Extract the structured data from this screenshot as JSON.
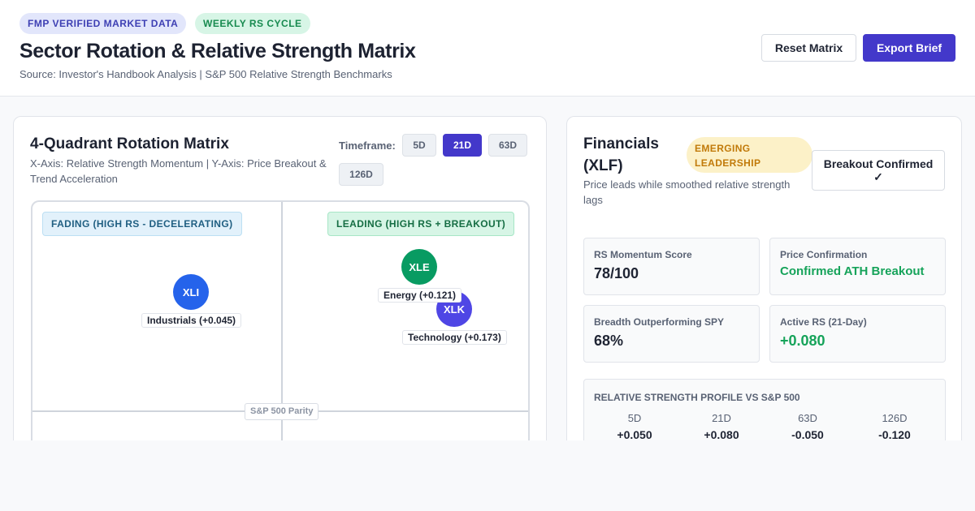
{
  "header": {
    "badges": [
      "FMP VERIFIED MARKET DATA",
      "WEEKLY RS CYCLE"
    ],
    "title": "Sector Rotation & Relative Strength Matrix",
    "source": "Source: Investor's Handbook Analysis | S&P 500 Relative Strength Benchmarks",
    "reset_label": "Reset Matrix",
    "export_label": "Export Brief"
  },
  "matrix": {
    "title": "4-Quadrant Rotation Matrix",
    "subtitle": "X-Axis: Relative Strength Momentum | Y-Axis: Price Breakout & Trend Acceleration",
    "timeframe_label": "Timeframe:",
    "timeframes": [
      "5D",
      "21D",
      "63D",
      "126D"
    ],
    "selected_timeframe": "21D",
    "quadrants": {
      "fading": "FADING (HIGH RS - DECELERATING)",
      "leading": "LEADING (HIGH RS + BREAKOUT)"
    },
    "parity_label": "S&P 500 Parity",
    "sectors": [
      {
        "ticker": "XLI",
        "label": "Industrials (+0.045)",
        "color": "#2563eb"
      },
      {
        "ticker": "XLE",
        "label": "Energy (+0.121)",
        "color": "#089b62"
      },
      {
        "ticker": "XLK",
        "label": "Technology (+0.173)",
        "color": "#4f46e5"
      }
    ]
  },
  "detail": {
    "title": "Financials (XLF)",
    "status_badge": "EMERGING LEADERSHIP",
    "description": "Price leads while smoothed relative strength lags",
    "breakout_label": "Breakout Confirmed ✓",
    "metrics": [
      {
        "label": "RS Momentum Score",
        "value": "78/100"
      },
      {
        "label": "Price Confirmation",
        "value": "Confirmed ATH Breakout"
      },
      {
        "label": "Breadth Outperforming SPY",
        "value": "68%"
      },
      {
        "label": "Active RS (21-Day)",
        "value": "+0.080"
      }
    ],
    "profile": {
      "title": "RELATIVE STRENGTH PROFILE VS S&P 500",
      "columns": [
        {
          "period": "5D",
          "value": "+0.050"
        },
        {
          "period": "21D",
          "value": "+0.080"
        },
        {
          "period": "63D",
          "value": "-0.050"
        },
        {
          "period": "126D",
          "value": "-0.120"
        }
      ]
    }
  },
  "colors": {
    "accent": "#4338ca",
    "positive": "#16a35a",
    "warning": "#c17a0a"
  }
}
